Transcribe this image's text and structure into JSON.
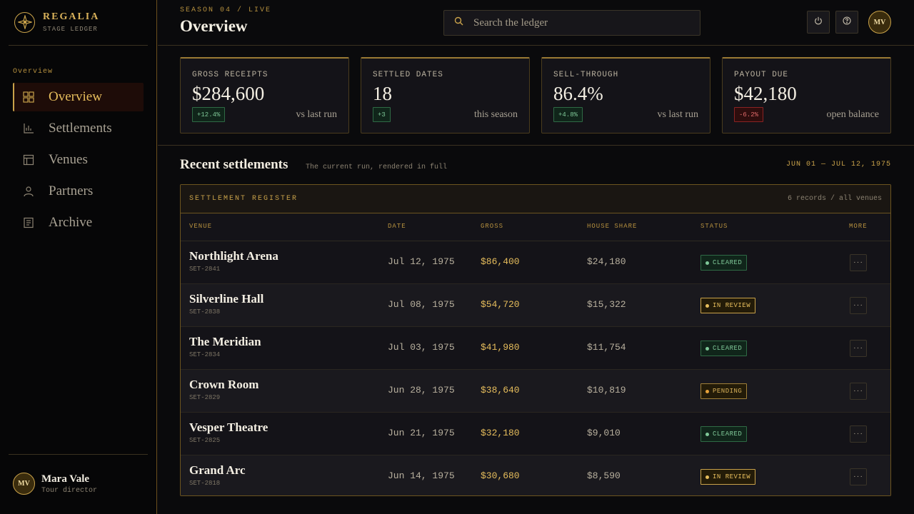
{
  "brand": {
    "name": "REGALIA",
    "subtitle": "STAGE LEDGER"
  },
  "sidebar": {
    "section_label": "Overview",
    "items": [
      {
        "label": "Overview",
        "icon": "grid-icon",
        "active": true
      },
      {
        "label": "Settlements",
        "icon": "bar-chart-icon",
        "active": false
      },
      {
        "label": "Venues",
        "icon": "layout-icon",
        "active": false
      },
      {
        "label": "Partners",
        "icon": "person-icon",
        "active": false
      },
      {
        "label": "Archive",
        "icon": "document-icon",
        "active": false
      }
    ],
    "user": {
      "initials": "MV",
      "name": "Mara Vale",
      "role": "Tour director"
    }
  },
  "header": {
    "eyebrow": "SEASON 04 / LIVE",
    "title": "Overview",
    "search_placeholder": "Search the ledger",
    "avatar_initials": "MV"
  },
  "kpis": [
    {
      "label": "GROSS RECEIPTS",
      "value": "$284,600",
      "delta": "+12.4%",
      "trend": "up",
      "note": "vs last run"
    },
    {
      "label": "SETTLED DATES",
      "value": "18",
      "delta": "+3",
      "trend": "up",
      "note": "this season"
    },
    {
      "label": "SELL-THROUGH",
      "value": "86.4%",
      "delta": "+4.8%",
      "trend": "up",
      "note": "vs last run"
    },
    {
      "label": "PAYOUT DUE",
      "value": "$42,180",
      "delta": "-6.2%",
      "trend": "down",
      "note": "open balance"
    }
  ],
  "section": {
    "title": "Recent settlements",
    "subtitle": "The current run, rendered in full",
    "range": "JUN 01 — JUL 12, 1975"
  },
  "table": {
    "title": "SETTLEMENT REGISTER",
    "meta": "6 records / all venues",
    "columns": {
      "venue": "VENUE",
      "date": "DATE",
      "gross": "GROSS",
      "house": "HOUSE SHARE",
      "status": "STATUS",
      "more": "MORE"
    },
    "rows": [
      {
        "venue": "Northlight Arena",
        "id": "SET-2841",
        "date": "Jul 12, 1975",
        "gross": "$86,400",
        "house": "$24,180",
        "status": "CLEARED",
        "status_type": "cleared"
      },
      {
        "venue": "Silverline Hall",
        "id": "SET-2838",
        "date": "Jul 08, 1975",
        "gross": "$54,720",
        "house": "$15,322",
        "status": "IN REVIEW",
        "status_type": "review"
      },
      {
        "venue": "The Meridian",
        "id": "SET-2834",
        "date": "Jul 03, 1975",
        "gross": "$41,980",
        "house": "$11,754",
        "status": "CLEARED",
        "status_type": "cleared"
      },
      {
        "venue": "Crown Room",
        "id": "SET-2829",
        "date": "Jun 28, 1975",
        "gross": "$38,640",
        "house": "$10,819",
        "status": "PENDING",
        "status_type": "pending"
      },
      {
        "venue": "Vesper Theatre",
        "id": "SET-2825",
        "date": "Jun 21, 1975",
        "gross": "$32,180",
        "house": "$9,010",
        "status": "CLEARED",
        "status_type": "cleared"
      },
      {
        "venue": "Grand Arc",
        "id": "SET-2818",
        "date": "Jun 14, 1975",
        "gross": "$30,680",
        "house": "$8,590",
        "status": "IN REVIEW",
        "status_type": "review"
      }
    ]
  },
  "colors": {
    "accent": "#c9a24a",
    "background": "#0a0a0c",
    "positive": "#7fc898",
    "negative": "#e06b6b"
  }
}
